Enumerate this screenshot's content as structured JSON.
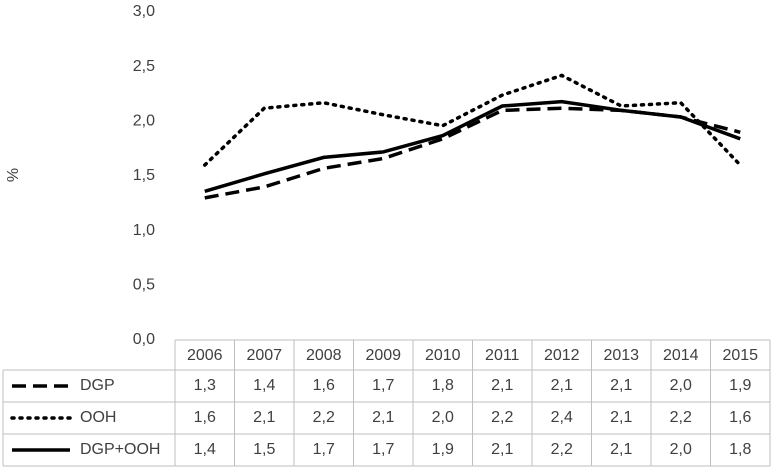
{
  "chart_data": {
    "type": "line",
    "y_label": "%",
    "categories": [
      "2006",
      "2007",
      "2008",
      "2009",
      "2010",
      "2011",
      "2012",
      "2013",
      "2014",
      "2015"
    ],
    "series": [
      {
        "name": "DGP",
        "color": "#000000",
        "dash": "dashed",
        "values": [
          1.3,
          1.4,
          1.57,
          1.66,
          1.84,
          2.1,
          2.12,
          2.1,
          2.04,
          1.9
        ],
        "value_labels": [
          "1,3",
          "1,4",
          "1,6",
          "1,7",
          "1,8",
          "2,1",
          "2,1",
          "2,1",
          "2,0",
          "1,9"
        ]
      },
      {
        "name": "OOH",
        "color": "#000000",
        "dash": "dotted",
        "values": [
          1.6,
          2.12,
          2.17,
          2.06,
          1.96,
          2.24,
          2.42,
          2.14,
          2.17,
          1.6
        ],
        "value_labels": [
          "1,6",
          "2,1",
          "2,2",
          "2,1",
          "2,0",
          "2,2",
          "2,4",
          "2,1",
          "2,2",
          "1,6"
        ]
      },
      {
        "name": "DGP+OOH",
        "color": "#000000",
        "dash": "solid",
        "values": [
          1.36,
          1.52,
          1.67,
          1.72,
          1.87,
          2.14,
          2.18,
          2.1,
          2.04,
          1.84
        ],
        "value_labels": [
          "1,4",
          "1,5",
          "1,7",
          "1,7",
          "1,9",
          "2,1",
          "2,2",
          "2,1",
          "2,0",
          "1,8"
        ]
      }
    ],
    "ylim": [
      0,
      3
    ],
    "yticks": [
      {
        "value": 0,
        "label": "0,0"
      },
      {
        "value": 0.5,
        "label": "0,5"
      },
      {
        "value": 1,
        "label": "1,0"
      },
      {
        "value": 1.5,
        "label": "1,5"
      },
      {
        "value": 2,
        "label": "2,0"
      },
      {
        "value": 2.5,
        "label": "2,5"
      },
      {
        "value": 3,
        "label": "3,0"
      }
    ],
    "grid": false
  }
}
